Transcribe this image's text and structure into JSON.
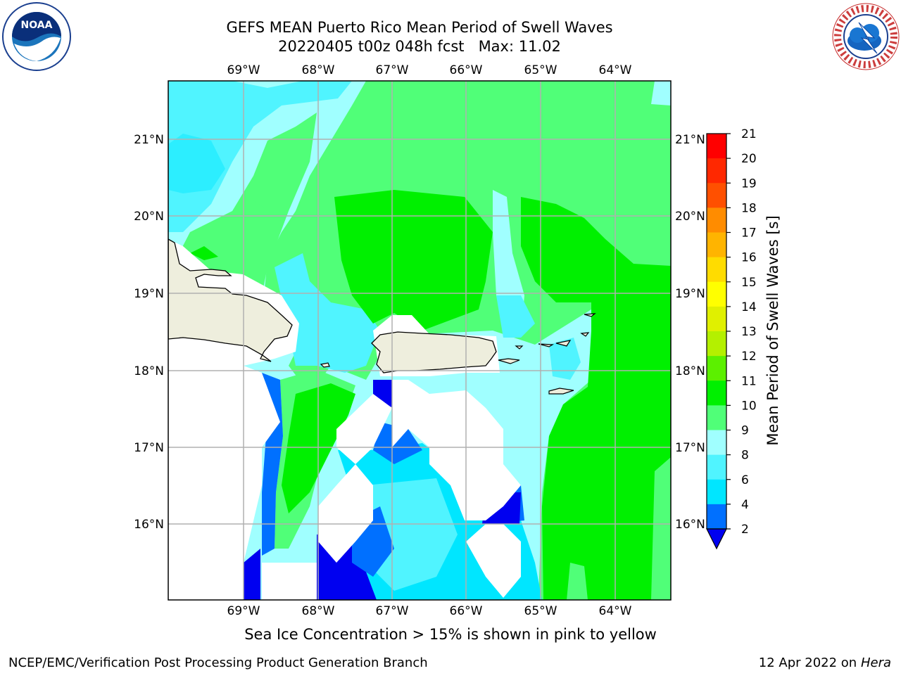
{
  "title": {
    "line1": "GEFS MEAN Puerto Rico Mean Period of Swell Waves",
    "line2": "20220405 t00z 048h fcst   Max: 11.02"
  },
  "logos": {
    "left": "NOAA",
    "right": "NATIONAL WEATHER SERVICE"
  },
  "axes": {
    "lon_labels": [
      "69°W",
      "68°W",
      "67°W",
      "66°W",
      "65°W",
      "64°W"
    ],
    "lat_labels": [
      "21°N",
      "20°N",
      "19°N",
      "18°N",
      "17°N",
      "16°N"
    ]
  },
  "colorbar": {
    "label": "Mean Period of Swell Waves [s]",
    "ticks": [
      "2",
      "4",
      "6",
      "8",
      "9",
      "10",
      "11",
      "12",
      "13",
      "14",
      "15",
      "16",
      "17",
      "18",
      "19",
      "20",
      "21"
    ],
    "colors": [
      "#0000f0",
      "#0070ff",
      "#00e6ff",
      "#50f4ff",
      "#a0ffff",
      "#50ff78",
      "#00f000",
      "#5cf000",
      "#b4f000",
      "#e0f000",
      "#ffff00",
      "#ffdc00",
      "#ffb400",
      "#ff8c00",
      "#ff5000",
      "#ff2800",
      "#ff0000"
    ]
  },
  "footnote": "Sea Ice Concentration > 15% is shown in pink to yellow",
  "credit": {
    "left": "NCEP/EMC/Verification Post Processing Product Generation Branch",
    "right_prefix": "12 Apr 2022 on ",
    "right_host": "Hera"
  }
}
